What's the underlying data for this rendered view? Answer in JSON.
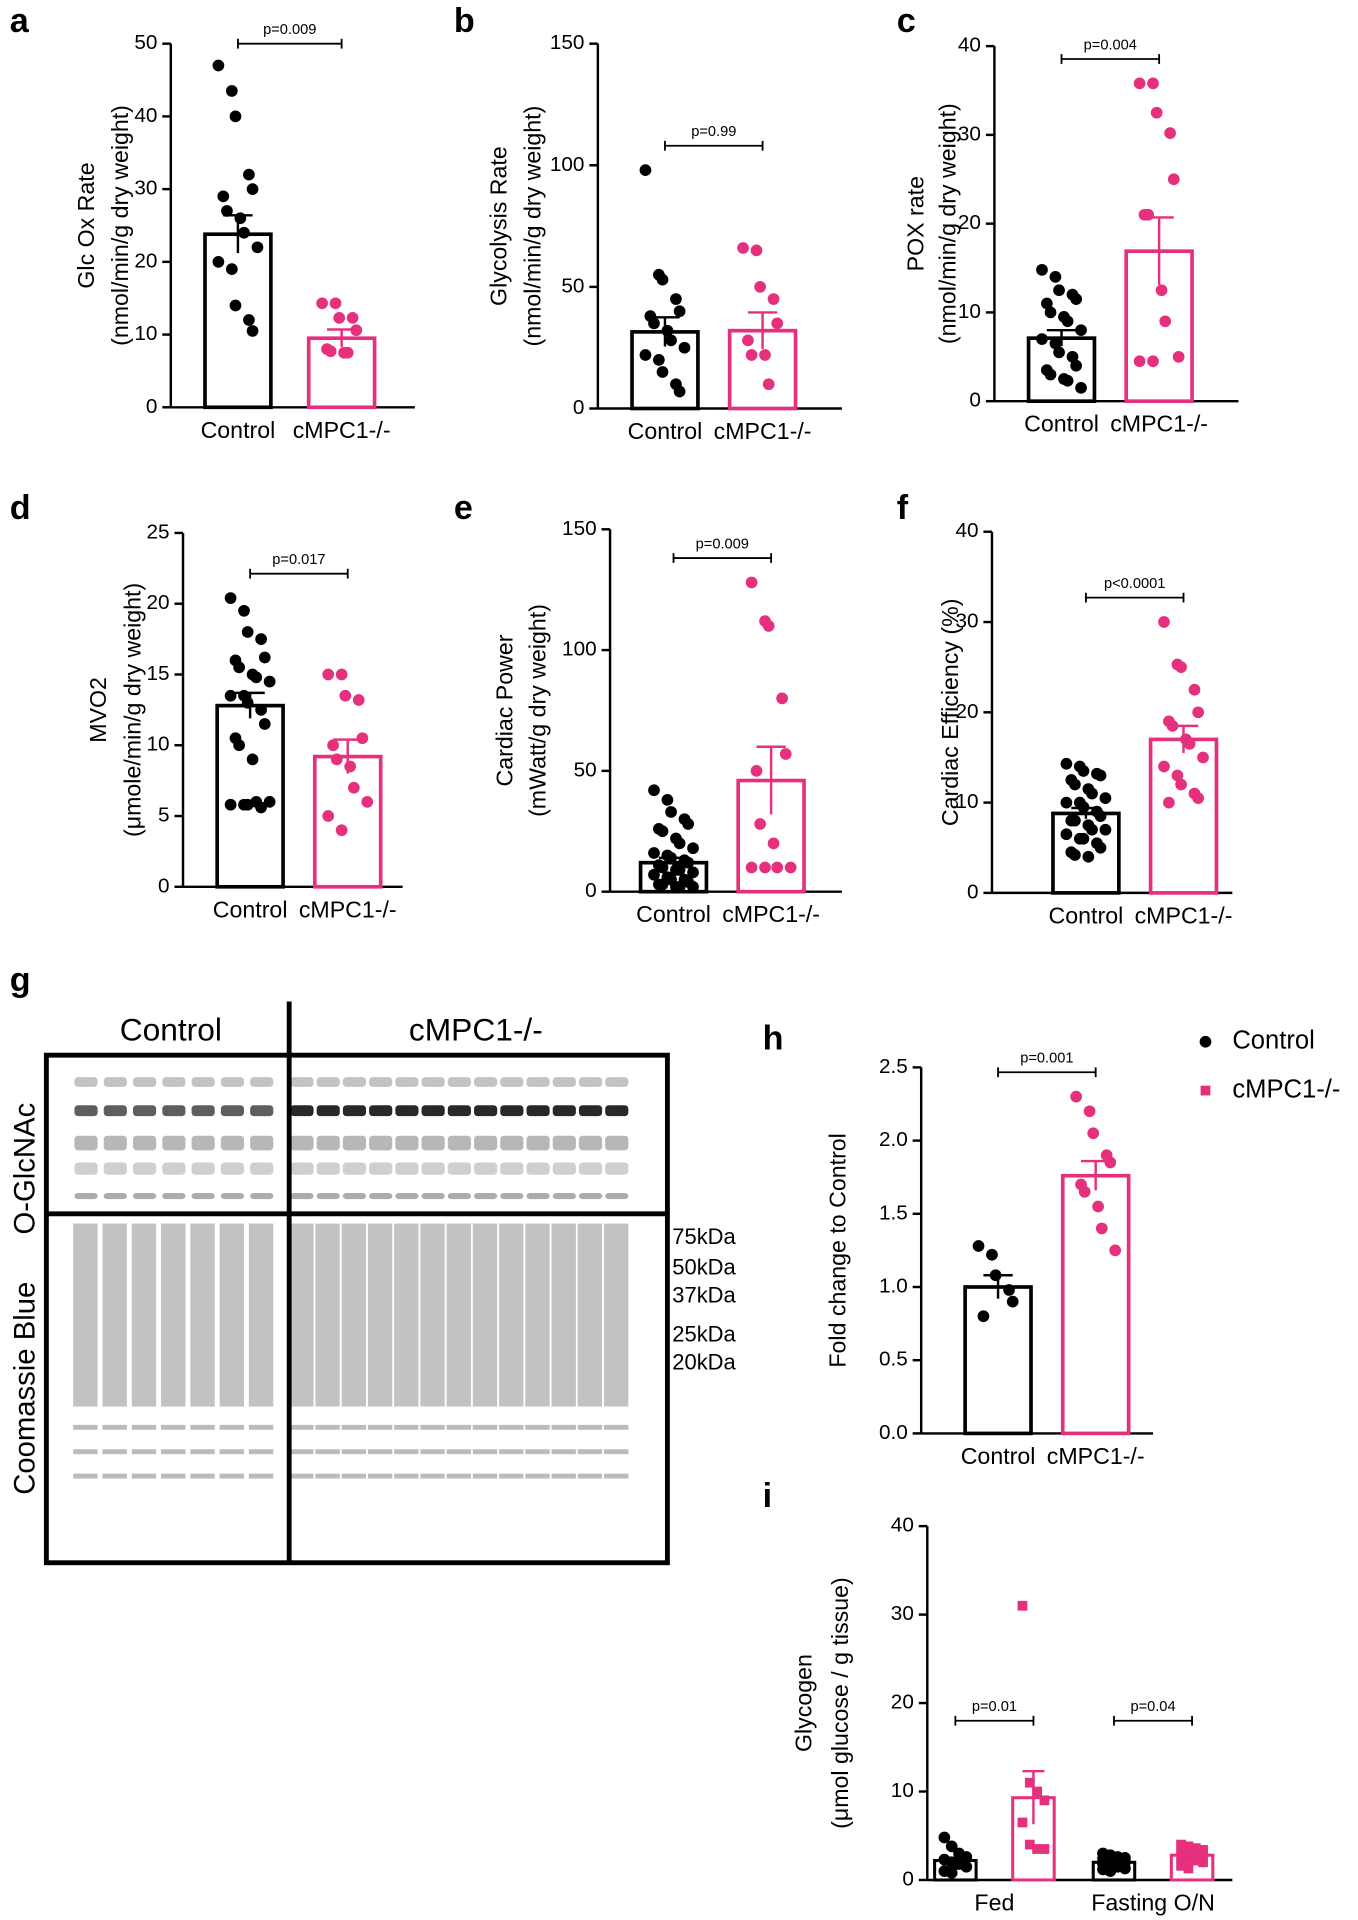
{
  "chart_data": [
    {
      "type": "dot_bar",
      "panel": "a",
      "ylabel": [
        "Glc Ox Rate",
        "(nmol/min/g dry weight)"
      ],
      "ylim": [
        0,
        50
      ],
      "yticks": [
        0,
        10,
        20,
        30,
        40,
        50
      ],
      "categories": [
        "Control",
        "cMPC1-/-"
      ],
      "colors": [
        "#000000",
        "#e5307e"
      ],
      "values": [
        23.8,
        9.5
      ],
      "errors": [
        2.6,
        1.2
      ],
      "points": [
        [
          47,
          43.5,
          40,
          32,
          30,
          29,
          27,
          26,
          24,
          22,
          20,
          19,
          14,
          12,
          10.5
        ],
        [
          14.3,
          14.3,
          12.3,
          12.3,
          10.6,
          8,
          7.7,
          7.5,
          7.5
        ]
      ],
      "annotation": "p=0.009"
    },
    {
      "type": "dot_bar",
      "panel": "b",
      "ylabel": [
        "Glycolysis Rate",
        "(nmol/min/g dry weight)"
      ],
      "ylim": [
        0,
        150
      ],
      "yticks": [
        0,
        50,
        100,
        150
      ],
      "categories": [
        "Control",
        "cMPC1-/-"
      ],
      "colors": [
        "#000000",
        "#e5307e"
      ],
      "values": [
        31.5,
        32
      ],
      "errors": [
        6,
        7.5
      ],
      "points": [
        [
          98,
          55,
          53,
          45,
          40,
          38,
          35,
          32,
          28,
          25,
          22,
          20,
          15,
          10,
          7
        ],
        [
          66,
          65,
          50,
          45,
          35,
          28,
          22,
          22,
          10
        ]
      ],
      "annotation": "p=0.99"
    },
    {
      "type": "dot_bar",
      "panel": "c",
      "ylabel": [
        "POX rate",
        "(nmol/min/g dry weight)"
      ],
      "ylim": [
        0,
        40
      ],
      "yticks": [
        0,
        10,
        20,
        30,
        40
      ],
      "categories": [
        "Control",
        "cMPC1-/-"
      ],
      "colors": [
        "#000000",
        "#e5307e"
      ],
      "values": [
        7.1,
        16.9
      ],
      "errors": [
        0.9,
        3.8
      ],
      "points": [
        [
          14.8,
          14,
          12.5,
          12,
          11.5,
          11,
          10,
          9.5,
          9,
          8,
          7,
          6.5,
          5.5,
          5,
          4,
          3.5,
          3,
          2.5,
          2.3,
          1.5
        ],
        [
          35.8,
          35.8,
          32.5,
          30.2,
          25,
          21,
          21,
          12.5,
          9,
          5,
          4.5,
          4.5
        ]
      ],
      "annotation": "p=0.004"
    },
    {
      "type": "dot_bar",
      "panel": "d",
      "ylabel": [
        "MVO2",
        "(μmole/min/g dry weight)"
      ],
      "ylim": [
        0,
        25
      ],
      "yticks": [
        0,
        5,
        10,
        15,
        20,
        25
      ],
      "categories": [
        "Control",
        "cMPC1-/-"
      ],
      "colors": [
        "#000000",
        "#e5307e"
      ],
      "values": [
        12.8,
        9.2
      ],
      "errors": [
        0.9,
        1.2
      ],
      "points": [
        [
          20.4,
          19.5,
          18,
          17.5,
          16.2,
          16,
          15.5,
          15,
          14.8,
          14.5,
          13.5,
          13.5,
          13,
          12.5,
          11.5,
          10.5,
          10,
          9,
          6,
          6,
          5.8,
          5.8,
          5.8,
          5.6
        ],
        [
          15,
          15,
          13.5,
          13.2,
          10.5,
          10,
          9,
          8.5,
          7,
          6,
          5,
          4
        ]
      ],
      "annotation": "p=0.017"
    },
    {
      "type": "dot_bar",
      "panel": "e",
      "ylabel": [
        "Cardiac Power",
        "(mWatt/g dry weight)"
      ],
      "ylim": [
        0,
        150
      ],
      "yticks": [
        0,
        50,
        100,
        150
      ],
      "categories": [
        "Control",
        "cMPC1-/-"
      ],
      "colors": [
        "#000000",
        "#e5307e"
      ],
      "values": [
        12,
        46
      ],
      "errors": [
        2,
        14
      ],
      "points": [
        [
          42,
          38,
          33,
          30,
          28,
          26,
          25,
          22,
          20,
          18,
          16,
          15,
          14,
          13,
          12,
          11,
          10,
          9,
          9,
          8,
          7,
          6,
          5,
          5,
          4,
          3,
          3,
          2,
          2,
          2
        ],
        [
          128,
          112,
          110,
          80,
          57,
          50,
          28,
          20,
          10,
          10,
          10,
          10
        ]
      ],
      "annotation": "p=0.009"
    },
    {
      "type": "dot_bar",
      "panel": "f",
      "ylabel": [
        "Cardiac Efficiency (%)"
      ],
      "ylim": [
        0,
        40
      ],
      "yticks": [
        0,
        10,
        20,
        30,
        40
      ],
      "categories": [
        "Control",
        "cMPC1-/-"
      ],
      "colors": [
        "#000000",
        "#e5307e"
      ],
      "values": [
        8.8,
        17
      ],
      "errors": [
        0.6,
        1.5
      ],
      "points": [
        [
          14.3,
          14,
          13.5,
          13.2,
          13,
          12.5,
          12,
          11.5,
          11,
          10.5,
          10,
          10,
          9.5,
          9,
          8.5,
          8,
          8,
          7.5,
          7,
          7,
          6.5,
          6,
          6,
          5.5,
          5,
          4.5,
          4.2,
          4
        ],
        [
          30,
          25.3,
          25,
          22.5,
          20,
          19,
          18.5,
          17,
          16.5,
          15,
          14,
          13,
          12,
          11,
          10.5,
          10
        ]
      ],
      "annotation": "p<0.0001"
    },
    {
      "type": "dot_bar",
      "panel": "h",
      "ylabel": [
        "Fold change to Control"
      ],
      "ylim": [
        0,
        2.5
      ],
      "yticks": [
        {
          "value": 0,
          "label": "0.0"
        },
        0.5,
        {
          "value": 1,
          "label": "1.0"
        },
        1.5,
        {
          "value": 2,
          "label": "2.0"
        },
        2.5
      ],
      "categories": [
        "Control",
        "cMPC1-/-"
      ],
      "colors": [
        "#000000",
        "#e5307e"
      ],
      "values": [
        1.0,
        1.76
      ],
      "errors": [
        0.08,
        0.1
      ],
      "points": [
        [
          1.28,
          1.22,
          1.08,
          0.98,
          0.9,
          0.8
        ],
        [
          2.3,
          2.2,
          2.05,
          1.9,
          1.85,
          1.7,
          1.65,
          1.55,
          1.4,
          1.25
        ]
      ],
      "annotation": "p=0.001"
    },
    {
      "type": "grouped_dot_bar",
      "panel": "i",
      "ylabel": [
        "Glycogen",
        "(μmol glucose / g tissue)"
      ],
      "ylim": [
        0,
        40
      ],
      "yticks": [
        0,
        10,
        20,
        30,
        40
      ],
      "categories": [
        "Fed",
        "Fasting O/N"
      ],
      "annotations": [
        "p=0.01",
        "p=0.04"
      ],
      "series": [
        {
          "name": "Control",
          "color": "#000000",
          "marker": "circle",
          "values": [
            2.2,
            2.0
          ],
          "errors": [
            0.3,
            0.2
          ],
          "points": [
            [
              4.8,
              3.8,
              3,
              2.6,
              2.3,
              2,
              1.8,
              1.5,
              1,
              0.8
            ],
            [
              3,
              2.8,
              2.6,
              2.5,
              2.4,
              2.2,
              2,
              2,
              1.8,
              1.6,
              1.5,
              1.3,
              1.2,
              1
            ]
          ]
        },
        {
          "name": "cMPC1-/-",
          "color": "#e5307e",
          "marker": "square",
          "values": [
            9.3,
            2.8
          ],
          "errors": [
            3,
            0.3
          ],
          "points": [
            [
              31,
              11,
              10,
              9,
              6.5,
              4,
              3.5,
              3.5
            ],
            [
              4,
              3.8,
              3.6,
              3.4,
              3.2,
              3,
              3,
              2.8,
              2.6,
              2.4,
              2.2,
              2,
              1.6,
              1.3
            ]
          ]
        }
      ]
    }
  ],
  "blot": {
    "panel": "g",
    "groups": [
      "Control",
      "cMPC1-/-"
    ],
    "rows": [
      "O-GlcNAc",
      "Coomassie Blue"
    ],
    "markers": [
      "75kDa",
      "50kDa",
      "37kDa",
      "25kDa",
      "20kDa"
    ]
  },
  "legend": [
    {
      "name": "Control",
      "color": "#000000",
      "marker": "circle"
    },
    {
      "name": "cMPC1-/-",
      "color": "#e5307e",
      "marker": "square"
    }
  ]
}
